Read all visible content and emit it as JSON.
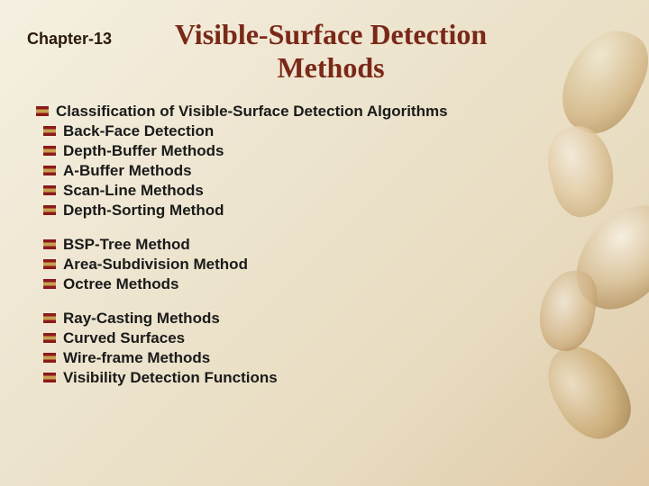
{
  "header": {
    "chapter": "Chapter-13",
    "title": "Visible-Surface Detection Methods",
    "title_color": "#7a2818"
  },
  "sections": [
    {
      "items": [
        {
          "text": "Classification of Visible-Surface Detection Algorithms",
          "indent": false
        },
        {
          "text": "Back-Face Detection",
          "indent": true
        },
        {
          "text": "Depth-Buffer Methods",
          "indent": true
        },
        {
          "text": "A-Buffer Methods",
          "indent": true
        },
        {
          "text": "Scan-Line Methods",
          "indent": true
        },
        {
          "text": "Depth-Sorting Method",
          "indent": true
        }
      ]
    },
    {
      "items": [
        {
          "text": "BSP-Tree Method",
          "indent": true
        },
        {
          "text": "Area-Subdivision Method",
          "indent": true
        },
        {
          "text": "Octree Methods",
          "indent": true
        }
      ]
    },
    {
      "items": [
        {
          "text": "Ray-Casting Methods",
          "indent": true
        },
        {
          "text": "Curved Surfaces",
          "indent": true
        },
        {
          "text": "Wire-frame Methods",
          "indent": true
        },
        {
          "text": "Visibility Detection Functions",
          "indent": true
        }
      ]
    }
  ],
  "styling": {
    "background_gradient_start": "#f5f0e1",
    "background_gradient_end": "#dfc9a8",
    "bullet_color_primary": "#8b1a1a",
    "bullet_color_secondary": "#c9a050",
    "text_color": "#1a1a1a",
    "chapter_color": "#2a1a0a",
    "item_fontsize": 17,
    "title_fontsize": 32,
    "chapter_fontsize": 18
  }
}
